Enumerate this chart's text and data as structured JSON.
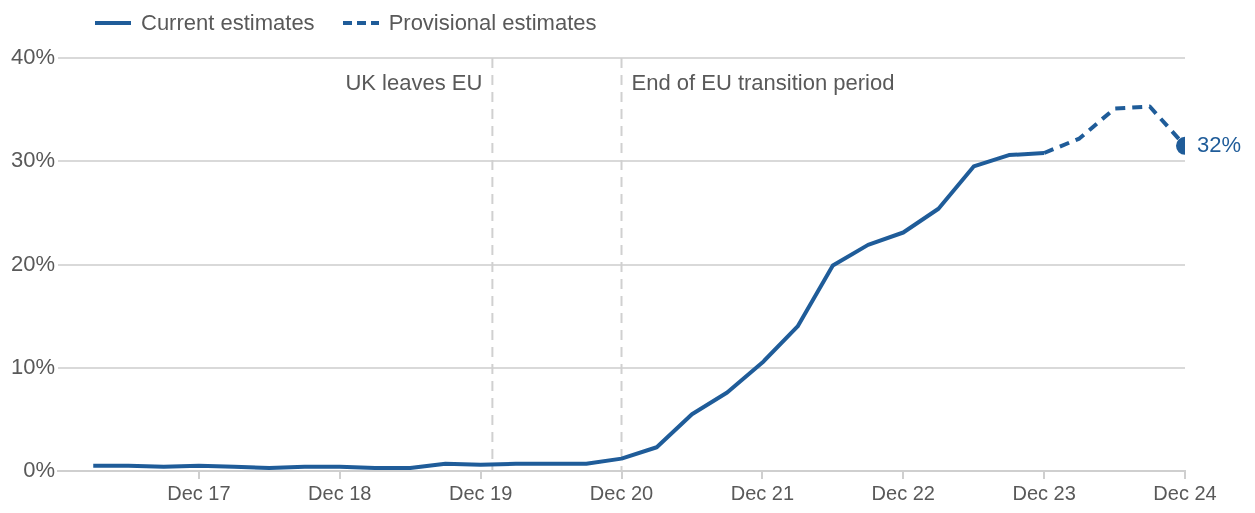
{
  "chart_data": {
    "type": "line",
    "x": [
      "2017-03",
      "2017-06",
      "2017-09",
      "2017-12",
      "2018-03",
      "2018-06",
      "2018-09",
      "2018-12",
      "2019-03",
      "2019-06",
      "2019-09",
      "2019-12",
      "2020-03",
      "2020-06",
      "2020-09",
      "2020-12",
      "2021-03",
      "2021-06",
      "2021-09",
      "2021-12",
      "2022-03",
      "2022-06",
      "2022-09",
      "2022-12",
      "2023-03",
      "2023-06",
      "2023-09",
      "2023-12",
      "2024-03",
      "2024-06",
      "2024-09",
      "2024-12"
    ],
    "series": [
      {
        "name": "Current estimates",
        "color": "#1f5c99",
        "line_style": "solid",
        "values": [
          0.5,
          0.5,
          0.4,
          0.5,
          0.4,
          0.3,
          0.4,
          0.4,
          0.3,
          0.3,
          0.7,
          0.6,
          0.7,
          0.7,
          0.7,
          1.2,
          2.3,
          5.5,
          7.6,
          10.5,
          14.0,
          19.9,
          21.9,
          23.1,
          25.4,
          29.5,
          30.6,
          30.8,
          null,
          null,
          null,
          null
        ]
      },
      {
        "name": "Provisional estimates",
        "color": "#1f5c99",
        "line_style": "dashed",
        "values": [
          null,
          null,
          null,
          null,
          null,
          null,
          null,
          null,
          null,
          null,
          null,
          null,
          null,
          null,
          null,
          null,
          null,
          null,
          null,
          null,
          null,
          null,
          null,
          null,
          null,
          null,
          null,
          30.8,
          32.2,
          35.1,
          35.3,
          31.5
        ],
        "value_labels": [
          null,
          null,
          null,
          null,
          null,
          null,
          null,
          null,
          null,
          null,
          null,
          null,
          null,
          null,
          null,
          null,
          null,
          null,
          null,
          null,
          null,
          null,
          null,
          null,
          null,
          null,
          null,
          null,
          null,
          null,
          null,
          "32%"
        ]
      }
    ],
    "xlim": [
      "2016-12",
      "2024-12"
    ],
    "xticks": [
      {
        "value": "2017-12",
        "label": "Dec 17"
      },
      {
        "value": "2018-12",
        "label": "Dec 18"
      },
      {
        "value": "2019-12",
        "label": "Dec 19"
      },
      {
        "value": "2020-12",
        "label": "Dec 20"
      },
      {
        "value": "2021-12",
        "label": "Dec 21"
      },
      {
        "value": "2022-12",
        "label": "Dec 22"
      },
      {
        "value": "2023-12",
        "label": "Dec 23"
      },
      {
        "value": "2024-12",
        "label": "Dec 24"
      }
    ],
    "ylim": [
      0,
      40
    ],
    "yticks": [
      {
        "value": 0,
        "label": "0%"
      },
      {
        "value": 10,
        "label": "10%"
      },
      {
        "value": 20,
        "label": "20%"
      },
      {
        "value": 30,
        "label": "30%"
      },
      {
        "value": 40,
        "label": "40%"
      }
    ],
    "grid": "y",
    "legend": "top left",
    "ref_lines": [
      {
        "axis": "x",
        "value": "2020-01",
        "label": "UK leaves EU",
        "color": "#d0d0d0",
        "line_style": "dashed"
      },
      {
        "axis": "x",
        "value": "2020-12",
        "label": "End of EU transition period",
        "color": "#d0d0d0",
        "line_style": "dashed"
      }
    ]
  }
}
